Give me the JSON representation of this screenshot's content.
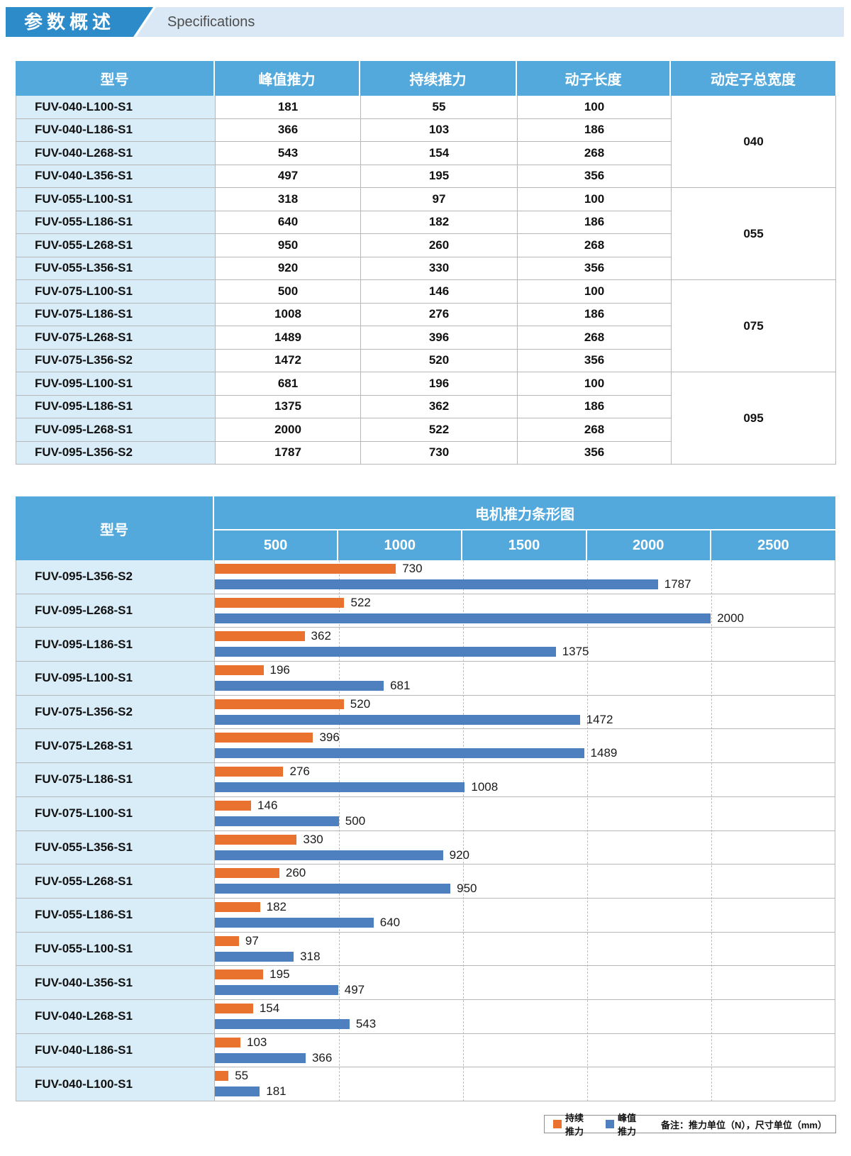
{
  "banner": {
    "title_zh": "参数概述",
    "title_en": "Specifications"
  },
  "spec_table": {
    "headers": [
      "型号",
      "峰值推力",
      "持续推力",
      "动子长度",
      "动定子总宽度"
    ],
    "rows": [
      {
        "model": "FUV-040-L100-S1",
        "peak": "181",
        "cont": "55",
        "length": "100"
      },
      {
        "model": "FUV-040-L186-S1",
        "peak": "366",
        "cont": "103",
        "length": "186"
      },
      {
        "model": "FUV-040-L268-S1",
        "peak": "543",
        "cont": "154",
        "length": "268"
      },
      {
        "model": "FUV-040-L356-S1",
        "peak": "497",
        "cont": "195",
        "length": "356"
      },
      {
        "model": "FUV-055-L100-S1",
        "peak": "318",
        "cont": "97",
        "length": "100"
      },
      {
        "model": "FUV-055-L186-S1",
        "peak": "640",
        "cont": "182",
        "length": "186"
      },
      {
        "model": "FUV-055-L268-S1",
        "peak": "950",
        "cont": "260",
        "length": "268"
      },
      {
        "model": "FUV-055-L356-S1",
        "peak": "920",
        "cont": "330",
        "length": "356"
      },
      {
        "model": "FUV-075-L100-S1",
        "peak": "500",
        "cont": "146",
        "length": "100"
      },
      {
        "model": "FUV-075-L186-S1",
        "peak": "1008",
        "cont": "276",
        "length": "186"
      },
      {
        "model": "FUV-075-L268-S1",
        "peak": "1489",
        "cont": "396",
        "length": "268"
      },
      {
        "model": "FUV-075-L356-S2",
        "peak": "1472",
        "cont": "520",
        "length": "356"
      },
      {
        "model": "FUV-095-L100-S1",
        "peak": "681",
        "cont": "196",
        "length": "100"
      },
      {
        "model": "FUV-095-L186-S1",
        "peak": "1375",
        "cont": "362",
        "length": "186"
      },
      {
        "model": "FUV-095-L268-S1",
        "peak": "2000",
        "cont": "522",
        "length": "268"
      },
      {
        "model": "FUV-095-L356-S2",
        "peak": "1787",
        "cont": "730",
        "length": "356"
      }
    ],
    "width_groups": [
      "040",
      "055",
      "075",
      "095"
    ]
  },
  "chart": {
    "model_column_header": "型号",
    "title": "电机推力条形图",
    "ticks": [
      "500",
      "1000",
      "1500",
      "2000",
      "2500"
    ],
    "legend": {
      "cont_label": "持续推力",
      "peak_label": "峰值推力",
      "note": "备注：推力单位（N），尺寸单位（mm）"
    }
  },
  "chart_data": {
    "type": "bar",
    "orientation": "horizontal",
    "title": "电机推力条形图",
    "categories": [
      "FUV-095-L356-S2",
      "FUV-095-L268-S1",
      "FUV-095-L186-S1",
      "FUV-095-L100-S1",
      "FUV-075-L356-S2",
      "FUV-075-L268-S1",
      "FUV-075-L186-S1",
      "FUV-075-L100-S1",
      "FUV-055-L356-S1",
      "FUV-055-L268-S1",
      "FUV-055-L186-S1",
      "FUV-055-L100-S1",
      "FUV-040-L356-S1",
      "FUV-040-L268-S1",
      "FUV-040-L186-S1",
      "FUV-040-L100-S1"
    ],
    "series": [
      {
        "name": "持续推力",
        "color": "#e8722e",
        "values": [
          730,
          522,
          362,
          196,
          520,
          396,
          276,
          146,
          330,
          260,
          182,
          97,
          195,
          154,
          103,
          55
        ]
      },
      {
        "name": "峰值推力",
        "color": "#4e80c0",
        "values": [
          1787,
          2000,
          1375,
          681,
          1472,
          1489,
          1008,
          500,
          920,
          950,
          640,
          318,
          497,
          543,
          366,
          181
        ]
      }
    ],
    "xlim": [
      0,
      2500
    ],
    "x_ticks": [
      500,
      1000,
      1500,
      2000,
      2500
    ],
    "gridlines": "dashed vertical at 500/1000/1500/2000",
    "legend_position": "bottom-right",
    "units": {
      "thrust": "N",
      "dimension": "mm"
    }
  },
  "colors": {
    "banner_blue": "#2e8bca",
    "banner_light": "#d9e8f4",
    "table_header_blue": "#54a9dc",
    "model_cell_blue": "#d9edf9",
    "bar_orange": "#e8722e",
    "bar_blue": "#4e80c0",
    "grid_border": "#b7b7b7"
  }
}
